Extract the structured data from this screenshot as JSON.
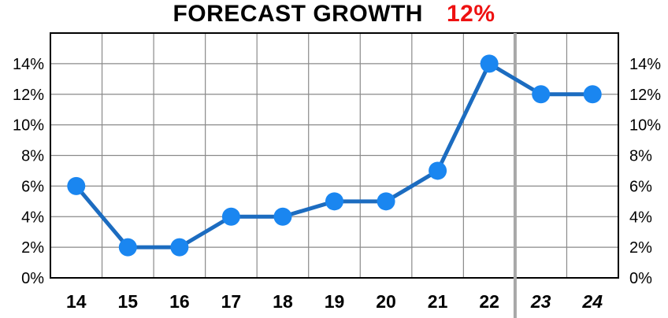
{
  "chart_data": {
    "type": "line",
    "title": "FORECAST GROWTH",
    "title_value": "12%",
    "categories": [
      "14",
      "15",
      "16",
      "17",
      "18",
      "19",
      "20",
      "21",
      "22",
      "23",
      "24"
    ],
    "forecast_categories": [
      "23",
      "24"
    ],
    "series": [
      {
        "values": [
          6,
          2,
          2,
          4,
          4,
          5,
          5,
          7,
          14,
          12,
          12
        ]
      }
    ],
    "yticks": [
      "0%",
      "2%",
      "4%",
      "6%",
      "8%",
      "10%",
      "12%",
      "14%"
    ],
    "ylim": [
      0,
      16
    ],
    "grid": true,
    "colors": {
      "series": "#1a86f0",
      "line": "#1c6cc0",
      "title_value": "#ee1111"
    }
  }
}
